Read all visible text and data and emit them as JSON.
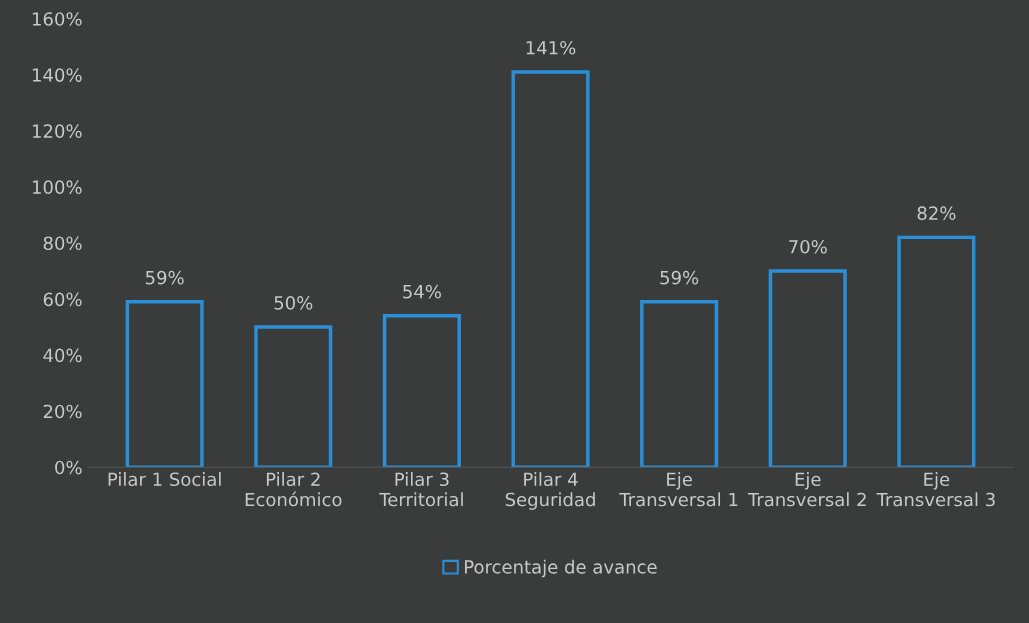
{
  "chart_data": {
    "type": "bar",
    "categories": [
      "Pilar 1 Social",
      "Pilar 2\nEconómico",
      "Pilar 3\nTerritorial",
      "Pilar 4\nSeguridad",
      "Eje\nTransversal 1",
      "Eje\nTransversal 2",
      "Eje\nTransversal 3"
    ],
    "series": [
      {
        "name": "Porcentaje de avance",
        "color": "#2a8fd8",
        "values": [
          59,
          50,
          54,
          141,
          59,
          70,
          82
        ],
        "value_labels": [
          "59%",
          "50%",
          "54%",
          "141%",
          "59%",
          "70%",
          "82%"
        ]
      }
    ],
    "ylim": [
      0,
      160
    ],
    "yticks": [
      {
        "value": 0,
        "label": "0%"
      },
      {
        "value": 20,
        "label": "20%"
      },
      {
        "value": 40,
        "label": "40%"
      },
      {
        "value": 60,
        "label": "60%"
      },
      {
        "value": 80,
        "label": "80%"
      },
      {
        "value": 100,
        "label": "100%"
      },
      {
        "value": 120,
        "label": "120%"
      },
      {
        "value": 140,
        "label": "140%"
      },
      {
        "value": 160,
        "label": "160%"
      }
    ],
    "grid": false,
    "legend": "bottom"
  }
}
